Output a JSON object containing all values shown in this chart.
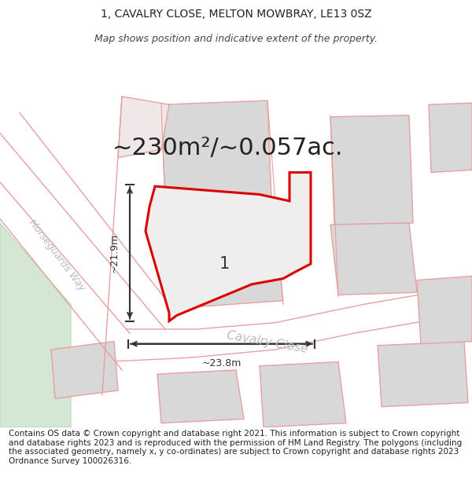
{
  "title_line1": "1, CAVALRY CLOSE, MELTON MOWBRAY, LE13 0SZ",
  "title_line2": "Map shows position and indicative extent of the property.",
  "area_text": "~230m²/~0.057ac.",
  "dim_vertical": "~21.9m",
  "dim_horizontal": "~23.8m",
  "label_number": "1",
  "road_label": "Cavalry Close",
  "street_label": "Horseguards Way",
  "footer_text": "Contains OS data © Crown copyright and database right 2021. This information is subject to Crown copyright and database rights 2023 and is reproduced with the permission of HM Land Registry. The polygons (including the associated geometry, namely x, y co-ordinates) are subject to Crown copyright and database rights 2023 Ordnance Survey 100026316.",
  "bg_color": "#ffffff",
  "plot_outline": "#dd0000",
  "road_outline": "#e8a0a0",
  "building_fill": "#d8d8d8",
  "building_edge": "#e8a0a0",
  "green_fill": "#d4e6d4",
  "dim_color": "#333333",
  "title_fontsize": 10,
  "subtitle_fontsize": 9,
  "area_fontsize": 22,
  "label_fontsize": 15,
  "footer_fontsize": 7.5,
  "road_label_color": "#bbbbbb",
  "road_label_size": 11
}
